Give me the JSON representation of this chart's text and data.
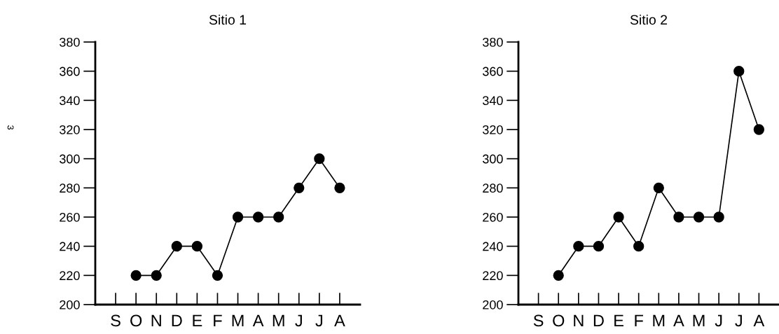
{
  "chart_data": [
    {
      "type": "line",
      "title": "Sitio 1",
      "categories": [
        "S",
        "O",
        "N",
        "D",
        "E",
        "F",
        "M",
        "A",
        "M",
        "J",
        "J",
        "A"
      ],
      "series": [
        {
          "color": "#000000",
          "values": [
            null,
            220,
            220,
            240,
            240,
            220,
            260,
            260,
            260,
            280,
            300,
            280
          ]
        }
      ],
      "ylim": [
        200,
        380
      ],
      "yticks": [
        200,
        220,
        240,
        260,
        280,
        300,
        320,
        340,
        360,
        380
      ],
      "marker": "circle",
      "line_style": "solid",
      "annotations": [
        "3"
      ]
    },
    {
      "type": "line",
      "title": "Sitio 2",
      "categories": [
        "S",
        "O",
        "N",
        "D",
        "E",
        "F",
        "M",
        "A",
        "M",
        "J",
        "J",
        "A"
      ],
      "series": [
        {
          "color": "#000000",
          "values": [
            null,
            220,
            240,
            240,
            260,
            240,
            280,
            260,
            260,
            260,
            360,
            320
          ]
        }
      ],
      "ylim": [
        200,
        380
      ],
      "yticks": [
        200,
        220,
        240,
        260,
        280,
        300,
        320,
        340,
        360,
        380
      ],
      "marker": "circle",
      "line_style": "solid"
    }
  ]
}
